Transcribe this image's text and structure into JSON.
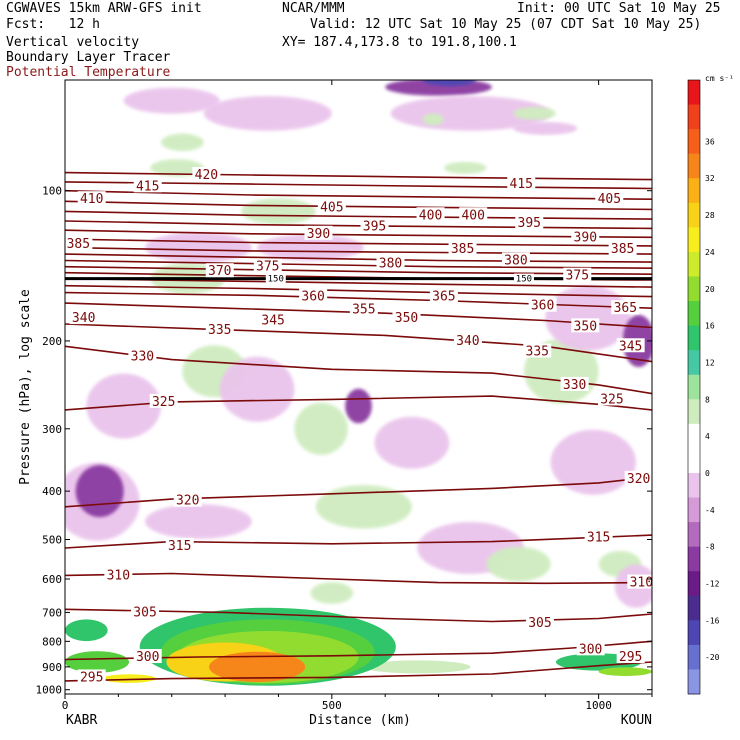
{
  "header": {
    "title_left": "CGWAVES 15km ARW-GFS init",
    "fcst": "Fcst:   12 h",
    "field1": "Vertical velocity",
    "field2": "Boundary Layer Tracer",
    "field3": "Potential Temperature",
    "center": "NCAR/MMM",
    "init": "Init: 00 UTC Sat 10 May 25",
    "valid": "Valid: 12 UTC Sat 10 May 25 (07 CDT Sat 10 May 25)",
    "xy": "XY= 187.4,173.8 to 191.8,100.1"
  },
  "colors": {
    "theta": "#7b0a0a",
    "pbl": "#000000",
    "field3_text": "#8b1a1a"
  },
  "chart_data": {
    "type": "cross-section",
    "xlabel": "Distance (km)",
    "ylabel": "Pressure (hPa), log scale",
    "xlim": [
      0,
      1100
    ],
    "ylim": [
      1020,
      60
    ],
    "y_scale": "log",
    "x_ticks": [
      "0",
      "500",
      "1000"
    ],
    "x_tick_values": [
      0,
      500,
      1000
    ],
    "y_ticks": [
      "100",
      "200",
      "300",
      "400",
      "500",
      "600",
      "700",
      "800",
      "900",
      "1000"
    ],
    "y_tick_values": [
      100,
      200,
      300,
      400,
      500,
      600,
      700,
      800,
      900,
      1000
    ],
    "endpoints": [
      "KABR",
      "KOUN"
    ],
    "colorbar": {
      "units": "cm s⁻¹",
      "labels": [
        "36",
        "32",
        "28",
        "24",
        "20",
        "16",
        "12",
        "8",
        "4",
        "0",
        "-4",
        "-8",
        "-12",
        "-16",
        "-20"
      ],
      "colors": [
        "#e8151b",
        "#f0401c",
        "#f55f1a",
        "#f7861a",
        "#fbb116",
        "#f7d217",
        "#f8ee1e",
        "#cdeb2b",
        "#92dc2f",
        "#56cf3f",
        "#30c56a",
        "#45c8a3",
        "#9de39b",
        "#cfecbf",
        "#ffffff",
        "#ffffff",
        "#eac4ec",
        "#d79ad8",
        "#b46bbd",
        "#8a3aa0",
        "#6a1b85",
        "#4b2d8f",
        "#4e47b3",
        "#6670cf",
        "#8a96e3"
      ]
    },
    "theta_isentropes": [
      {
        "theta": 295,
        "points": [
          [
            0,
            960
          ],
          [
            200,
            950
          ],
          [
            500,
            945
          ],
          [
            800,
            930
          ],
          [
            1000,
            895
          ],
          [
            1100,
            880
          ]
        ]
      },
      {
        "theta": 300,
        "points": [
          [
            0,
            870
          ],
          [
            250,
            860
          ],
          [
            500,
            855
          ],
          [
            800,
            845
          ],
          [
            950,
            825
          ],
          [
            1100,
            800
          ]
        ]
      },
      {
        "theta": 305,
        "points": [
          [
            0,
            690
          ],
          [
            300,
            700
          ],
          [
            600,
            720
          ],
          [
            800,
            730
          ],
          [
            1000,
            720
          ],
          [
            1100,
            705
          ]
        ]
      },
      {
        "theta": 310,
        "points": [
          [
            0,
            590
          ],
          [
            200,
            585
          ],
          [
            500,
            600
          ],
          [
            700,
            610
          ],
          [
            900,
            612
          ],
          [
            1100,
            610
          ]
        ]
      },
      {
        "theta": 315,
        "points": [
          [
            0,
            520
          ],
          [
            200,
            505
          ],
          [
            500,
            510
          ],
          [
            800,
            505
          ],
          [
            1000,
            495
          ],
          [
            1100,
            490
          ]
        ]
      },
      {
        "theta": 320,
        "points": [
          [
            0,
            430
          ],
          [
            200,
            415
          ],
          [
            500,
            405
          ],
          [
            800,
            395
          ],
          [
            1000,
            385
          ],
          [
            1100,
            375
          ]
        ]
      },
      {
        "theta": 325,
        "points": [
          [
            0,
            275
          ],
          [
            200,
            265
          ],
          [
            500,
            262
          ],
          [
            800,
            258
          ],
          [
            1000,
            268
          ],
          [
            1100,
            275
          ]
        ]
      },
      {
        "theta": 330,
        "points": [
          [
            0,
            205
          ],
          [
            200,
            218
          ],
          [
            500,
            228
          ],
          [
            800,
            232
          ],
          [
            1000,
            245
          ],
          [
            1100,
            255
          ]
        ]
      },
      {
        "theta": 335,
        "points": [
          [
            0,
            185
          ],
          [
            300,
            190
          ],
          [
            600,
            195
          ],
          [
            900,
            205
          ],
          [
            1100,
            220
          ]
        ]
      },
      {
        "theta": 340,
        "points": [
          [
            0,
            168
          ],
          [
            300,
            172
          ],
          [
            600,
            176
          ],
          [
            900,
            182
          ],
          [
            1100,
            188
          ]
        ]
      },
      {
        "theta": 345,
        "points": [
          [
            0,
            160
          ],
          [
            350,
            162
          ],
          [
            700,
            166
          ],
          [
            1100,
            172
          ]
        ]
      },
      {
        "theta": 350,
        "points": [
          [
            0,
            155
          ],
          [
            350,
            157
          ],
          [
            700,
            160
          ],
          [
            1100,
            163
          ]
        ]
      },
      {
        "theta": 355,
        "points": [
          [
            0,
            150
          ],
          [
            350,
            152
          ],
          [
            700,
            154
          ],
          [
            1100,
            156
          ]
        ]
      },
      {
        "theta": 360,
        "points": [
          [
            0,
            146
          ],
          [
            350,
            148
          ],
          [
            700,
            150
          ],
          [
            1100,
            151
          ]
        ]
      },
      {
        "theta": 365,
        "points": [
          [
            0,
            142
          ],
          [
            350,
            144
          ],
          [
            700,
            146
          ],
          [
            1100,
            147
          ]
        ]
      },
      {
        "theta": 370,
        "points": [
          [
            0,
            138
          ],
          [
            350,
            140
          ],
          [
            700,
            142
          ],
          [
            1100,
            143
          ]
        ]
      },
      {
        "theta": 375,
        "points": [
          [
            0,
            134
          ],
          [
            350,
            136
          ],
          [
            700,
            138
          ],
          [
            1100,
            139
          ]
        ]
      },
      {
        "theta": 380,
        "points": [
          [
            0,
            130
          ],
          [
            350,
            132
          ],
          [
            700,
            133
          ],
          [
            1100,
            134
          ]
        ]
      },
      {
        "theta": 385,
        "points": [
          [
            0,
            125
          ],
          [
            350,
            127
          ],
          [
            700,
            128
          ],
          [
            1100,
            129
          ]
        ]
      },
      {
        "theta": 390,
        "points": [
          [
            0,
            120
          ],
          [
            350,
            122
          ],
          [
            700,
            123
          ],
          [
            1100,
            124
          ]
        ]
      },
      {
        "theta": 395,
        "points": [
          [
            0,
            115
          ],
          [
            350,
            117
          ],
          [
            700,
            118
          ],
          [
            1100,
            119
          ]
        ]
      },
      {
        "theta": 400,
        "points": [
          [
            0,
            110
          ],
          [
            350,
            112
          ],
          [
            700,
            113
          ],
          [
            1100,
            114
          ]
        ]
      },
      {
        "theta": 405,
        "points": [
          [
            0,
            105
          ],
          [
            350,
            107
          ],
          [
            700,
            108
          ],
          [
            1100,
            109
          ]
        ]
      },
      {
        "theta": 410,
        "points": [
          [
            0,
            100
          ],
          [
            350,
            102
          ],
          [
            700,
            103
          ],
          [
            1100,
            104
          ]
        ]
      },
      {
        "theta": 415,
        "points": [
          [
            0,
            96
          ],
          [
            350,
            97
          ],
          [
            700,
            98
          ],
          [
            1100,
            99
          ]
        ]
      },
      {
        "theta": 420,
        "points": [
          [
            0,
            92
          ],
          [
            350,
            93
          ],
          [
            700,
            94
          ],
          [
            1100,
            95
          ]
        ]
      }
    ],
    "theta_labels": [
      {
        "text": "295",
        "x": 50,
        "p": 945
      },
      {
        "text": "300",
        "x": 155,
        "p": 860
      },
      {
        "text": "300",
        "x": 985,
        "p": 830
      },
      {
        "text": "295",
        "x": 1060,
        "p": 860
      },
      {
        "text": "305",
        "x": 150,
        "p": 700
      },
      {
        "text": "305",
        "x": 890,
        "p": 735
      },
      {
        "text": "310",
        "x": 100,
        "p": 590
      },
      {
        "text": "310",
        "x": 1080,
        "p": 610
      },
      {
        "text": "315",
        "x": 215,
        "p": 515
      },
      {
        "text": "315",
        "x": 1000,
        "p": 495
      },
      {
        "text": "320",
        "x": 230,
        "p": 418
      },
      {
        "text": "320",
        "x": 1075,
        "p": 378
      },
      {
        "text": "325",
        "x": 185,
        "p": 265
      },
      {
        "text": "325",
        "x": 1025,
        "p": 262
      },
      {
        "text": "330",
        "x": 145,
        "p": 215
      },
      {
        "text": "330",
        "x": 955,
        "p": 245
      },
      {
        "text": "335",
        "x": 290,
        "p": 190
      },
      {
        "text": "335",
        "x": 885,
        "p": 210
      },
      {
        "text": "340",
        "x": 35,
        "p": 180
      },
      {
        "text": "340",
        "x": 755,
        "p": 200
      },
      {
        "text": "345",
        "x": 390,
        "p": 182
      },
      {
        "text": "345",
        "x": 1060,
        "p": 205
      },
      {
        "text": "350",
        "x": 640,
        "p": 180
      },
      {
        "text": "350",
        "x": 975,
        "p": 187
      },
      {
        "text": "355",
        "x": 560,
        "p": 173
      },
      {
        "text": "360",
        "x": 465,
        "p": 163
      },
      {
        "text": "360",
        "x": 895,
        "p": 170
      },
      {
        "text": "365",
        "x": 710,
        "p": 163
      },
      {
        "text": "365",
        "x": 1050,
        "p": 172
      },
      {
        "text": "370",
        "x": 290,
        "p": 145
      },
      {
        "text": "375",
        "x": 380,
        "p": 142
      },
      {
        "text": "375",
        "x": 960,
        "p": 148
      },
      {
        "text": "380",
        "x": 610,
        "p": 140
      },
      {
        "text": "380",
        "x": 845,
        "p": 138
      },
      {
        "text": "385",
        "x": 25,
        "p": 128
      },
      {
        "text": "385",
        "x": 745,
        "p": 131
      },
      {
        "text": "385",
        "x": 1045,
        "p": 131
      },
      {
        "text": "390",
        "x": 475,
        "p": 122
      },
      {
        "text": "390",
        "x": 975,
        "p": 124
      },
      {
        "text": "395",
        "x": 580,
        "p": 118
      },
      {
        "text": "395",
        "x": 870,
        "p": 116
      },
      {
        "text": "400",
        "x": 685,
        "p": 112
      },
      {
        "text": "400",
        "x": 765,
        "p": 112
      },
      {
        "text": "405",
        "x": 500,
        "p": 108
      },
      {
        "text": "405",
        "x": 1020,
        "p": 104
      },
      {
        "text": "410",
        "x": 50,
        "p": 104
      },
      {
        "text": "415",
        "x": 155,
        "p": 98
      },
      {
        "text": "415",
        "x": 855,
        "p": 97
      },
      {
        "text": "420",
        "x": 265,
        "p": 93
      }
    ],
    "pbl_line": {
      "p": 150,
      "labels": [
        {
          "text": "150",
          "x": 395
        },
        {
          "text": "150",
          "x": 860
        }
      ]
    },
    "w_blobs": [
      {
        "level": -4,
        "x": 200,
        "p": 66,
        "rx": 90,
        "rp": 0.06
      },
      {
        "level": -4,
        "x": 380,
        "p": 70,
        "rx": 120,
        "rp": 0.08
      },
      {
        "level": -8,
        "x": 700,
        "p": 62,
        "rx": 100,
        "rp": 0.04
      },
      {
        "level": -12,
        "x": 720,
        "p": 60,
        "rx": 50,
        "rp": 0.025
      },
      {
        "level": -4,
        "x": 760,
        "p": 70,
        "rx": 150,
        "rp": 0.08
      },
      {
        "level": 4,
        "x": 690,
        "p": 72,
        "rx": 20,
        "rp": 0.02
      },
      {
        "level": 4,
        "x": 880,
        "p": 70,
        "rx": 40,
        "rp": 0.03
      },
      {
        "level": 4,
        "x": 220,
        "p": 80,
        "rx": 40,
        "rp": 0.04
      },
      {
        "level": 4,
        "x": 750,
        "p": 90,
        "rx": 40,
        "rp": 0.02
      },
      {
        "level": -4,
        "x": 900,
        "p": 75,
        "rx": 60,
        "rp": 0.03
      },
      {
        "level": 4,
        "x": 210,
        "p": 90,
        "rx": 50,
        "rp": 0.04
      },
      {
        "level": 4,
        "x": 400,
        "p": 110,
        "rx": 70,
        "rp": 0.06
      },
      {
        "level": -4,
        "x": 250,
        "p": 130,
        "rx": 100,
        "rp": 0.07
      },
      {
        "level": -4,
        "x": 460,
        "p": 130,
        "rx": 100,
        "rp": 0.06
      },
      {
        "level": 4,
        "x": 230,
        "p": 150,
        "rx": 70,
        "rp": 0.07
      },
      {
        "level": -4,
        "x": 110,
        "p": 270,
        "rx": 70,
        "rp": 0.15
      },
      {
        "level": 4,
        "x": 280,
        "p": 230,
        "rx": 60,
        "rp": 0.12
      },
      {
        "level": -4,
        "x": 360,
        "p": 250,
        "rx": 70,
        "rp": 0.15
      },
      {
        "level": -8,
        "x": 550,
        "p": 270,
        "rx": 25,
        "rp": 0.08
      },
      {
        "level": 4,
        "x": 480,
        "p": 300,
        "rx": 50,
        "rp": 0.12
      },
      {
        "level": -4,
        "x": 650,
        "p": 320,
        "rx": 70,
        "rp": 0.12
      },
      {
        "level": 4,
        "x": 930,
        "p": 230,
        "rx": 70,
        "rp": 0.15
      },
      {
        "level": -4,
        "x": 980,
        "p": 180,
        "rx": 80,
        "rp": 0.15
      },
      {
        "level": -8,
        "x": 1075,
        "p": 200,
        "rx": 30,
        "rp": 0.12
      },
      {
        "level": -4,
        "x": 60,
        "p": 420,
        "rx": 80,
        "rp": 0.18
      },
      {
        "level": -8,
        "x": 65,
        "p": 400,
        "rx": 45,
        "rp": 0.12
      },
      {
        "level": -4,
        "x": 250,
        "p": 460,
        "rx": 100,
        "rp": 0.08
      },
      {
        "level": 4,
        "x": 560,
        "p": 430,
        "rx": 90,
        "rp": 0.1
      },
      {
        "level": -4,
        "x": 760,
        "p": 520,
        "rx": 100,
        "rp": 0.12
      },
      {
        "level": -4,
        "x": 990,
        "p": 350,
        "rx": 80,
        "rp": 0.15
      },
      {
        "level": 4,
        "x": 850,
        "p": 560,
        "rx": 60,
        "rp": 0.08
      },
      {
        "level": 4,
        "x": 1040,
        "p": 560,
        "rx": 40,
        "rp": 0.06
      },
      {
        "level": -4,
        "x": 1070,
        "p": 620,
        "rx": 40,
        "rp": 0.1
      },
      {
        "level": 4,
        "x": 500,
        "p": 640,
        "rx": 40,
        "rp": 0.05
      }
    ],
    "pbl_tracer": [
      {
        "level": 4,
        "x": 660,
        "p": 900,
        "rx": 100,
        "rp": 0.03
      },
      {
        "level": 8,
        "x": 380,
        "p": 820,
        "rx": 240,
        "rp": 0.18
      },
      {
        "level": 12,
        "x": 380,
        "p": 840,
        "rx": 200,
        "rp": 0.15
      },
      {
        "level": 16,
        "x": 380,
        "p": 860,
        "rx": 170,
        "rp": 0.12
      },
      {
        "level": 24,
        "x": 300,
        "p": 880,
        "rx": 110,
        "rp": 0.09
      },
      {
        "level": 28,
        "x": 360,
        "p": 900,
        "rx": 90,
        "rp": 0.07
      },
      {
        "level": 8,
        "x": 40,
        "p": 760,
        "rx": 40,
        "rp": 0.05
      },
      {
        "level": 12,
        "x": 60,
        "p": 880,
        "rx": 60,
        "rp": 0.05
      },
      {
        "level": 20,
        "x": 120,
        "p": 950,
        "rx": 50,
        "rp": 0.02
      },
      {
        "level": 8,
        "x": 1000,
        "p": 880,
        "rx": 80,
        "rp": 0.04
      },
      {
        "level": 16,
        "x": 1050,
        "p": 920,
        "rx": 50,
        "rp": 0.02
      }
    ]
  }
}
